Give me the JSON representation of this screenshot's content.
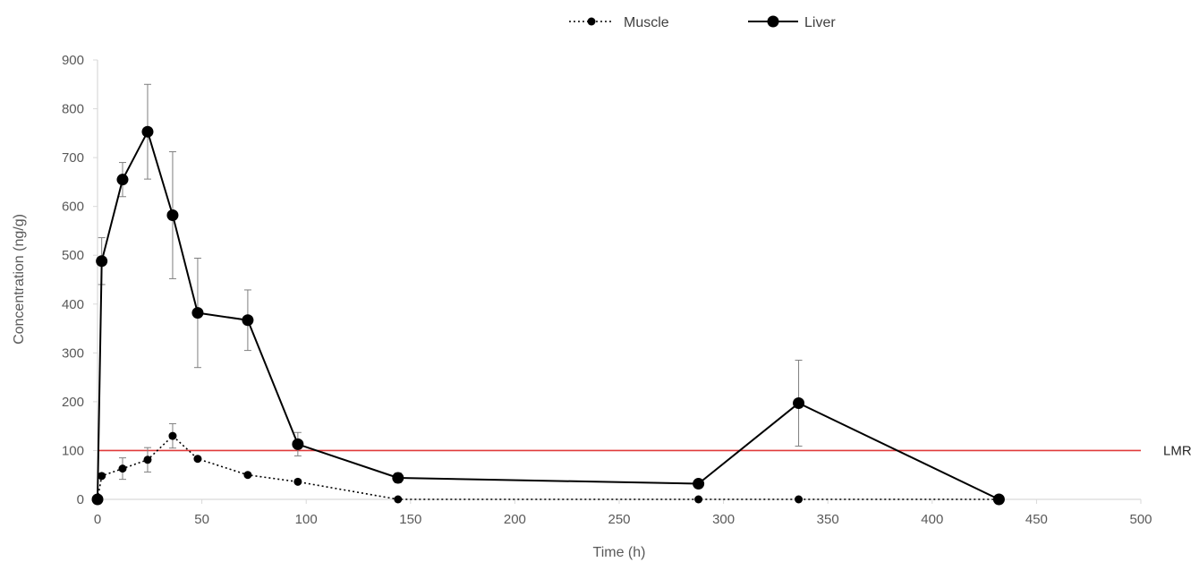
{
  "chart_data": {
    "type": "line",
    "title": "",
    "xlabel": "Time (h)",
    "ylabel": "Concentration (ng/g)",
    "xlim": [
      0,
      500
    ],
    "ylim": [
      0,
      900
    ],
    "x_ticks": [
      "0",
      "50",
      "100",
      "150",
      "200",
      "250",
      "300",
      "350",
      "400",
      "450",
      "500"
    ],
    "y_ticks": [
      "0",
      "100",
      "200",
      "300",
      "400",
      "500",
      "600",
      "700",
      "800",
      "900"
    ],
    "grid": false,
    "legend_position": "top-center",
    "reference_line": {
      "label": "LMR",
      "value": 100,
      "color": "#e03a3a"
    },
    "series": [
      {
        "name": "Muscle",
        "style": "dotted",
        "color": "#000000",
        "x": [
          0,
          2,
          12,
          24,
          36,
          48,
          72,
          96,
          144,
          288,
          336,
          432
        ],
        "y": [
          0,
          48,
          63,
          81,
          130,
          83,
          50,
          36,
          0,
          0,
          0,
          0
        ],
        "error": [
          0,
          0,
          22,
          25,
          25,
          0,
          0,
          0,
          0,
          0,
          0,
          0
        ]
      },
      {
        "name": "Liver",
        "style": "solid",
        "color": "#000000",
        "x": [
          0,
          2,
          12,
          24,
          36,
          48,
          72,
          96,
          144,
          288,
          336,
          432
        ],
        "y": [
          0,
          488,
          655,
          753,
          582,
          382,
          367,
          113,
          44,
          32,
          197,
          0
        ],
        "error": [
          0,
          48,
          35,
          97,
          130,
          112,
          62,
          24,
          10,
          0,
          88,
          0
        ]
      }
    ]
  }
}
